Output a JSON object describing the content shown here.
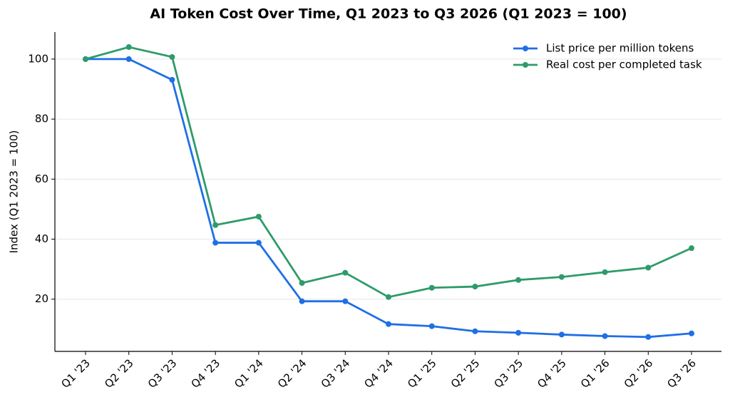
{
  "chart_data": {
    "type": "line",
    "title": "AI Token Cost Over Time, Q1 2023 to Q3 2026 (Q1 2023 = 100)",
    "y_label": "Index (Q1 2023 = 100)",
    "categories": [
      "Q1 '23",
      "Q2 '23",
      "Q3 '23",
      "Q4 '23",
      "Q1 '24",
      "Q2 '24",
      "Q3 '24",
      "Q4 '24",
      "Q1 '25",
      "Q2 '25",
      "Q3 '25",
      "Q4 '25",
      "Q1 '26",
      "Q2 '26",
      "Q3 '26"
    ],
    "series": [
      {
        "name": "List price per million tokens",
        "color": "#1f6fe5",
        "values": [
          100,
          100,
          93.1,
          38.8,
          38.8,
          19.3,
          19.3,
          11.7,
          11.0,
          9.3,
          8.8,
          8.2,
          7.7,
          7.4,
          8.6
        ]
      },
      {
        "name": "Real cost per completed task",
        "color": "#2e9b6a",
        "values": [
          100,
          104,
          100.7,
          44.7,
          47.5,
          25.4,
          28.8,
          20.7,
          23.8,
          24.2,
          26.4,
          27.4,
          29.0,
          30.5,
          37.0
        ]
      }
    ],
    "ylim": [
      2.6,
      109
    ],
    "yticks": [
      20,
      40,
      60,
      80,
      100
    ],
    "grid": true,
    "legend": "upper right"
  }
}
